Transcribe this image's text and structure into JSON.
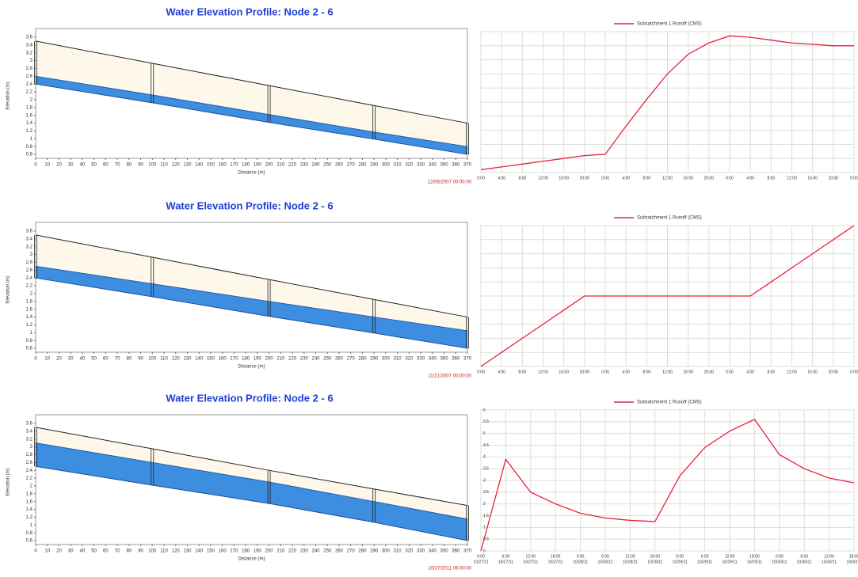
{
  "chart_data": [
    {
      "type": "profile",
      "title": "Water Elevation Profile:  Node 2 - 6",
      "xlabel": "Distance (m)",
      "ylabel": "Elevation (m)",
      "timestamp": "12/06/2007 00:00:00",
      "x": [
        0,
        100,
        200,
        290,
        370
      ],
      "ground": [
        3.5,
        2.93,
        2.36,
        1.85,
        1.4
      ],
      "water": [
        2.6,
        2.12,
        1.62,
        1.17,
        0.8
      ],
      "invert": [
        2.4,
        1.92,
        1.42,
        0.99,
        0.6
      ],
      "xlim": [
        0,
        370
      ],
      "ylim": [
        0.5,
        3.7
      ],
      "xticks": [
        0,
        10,
        20,
        30,
        40,
        50,
        60,
        70,
        80,
        90,
        100,
        110,
        120,
        130,
        140,
        150,
        160,
        170,
        180,
        190,
        200,
        210,
        220,
        230,
        240,
        250,
        260,
        270,
        280,
        290,
        300,
        310,
        320,
        330,
        340,
        350,
        360,
        370
      ],
      "yticks": [
        0.6,
        0.8,
        1,
        1.2,
        1.4,
        1.6,
        1.8,
        2,
        2.2,
        2.4,
        2.6,
        2.8,
        3,
        3.2,
        3.4,
        3.6
      ],
      "water_color": "#3d8de0",
      "ground_fill": "#fdf8ea"
    },
    {
      "type": "profile",
      "title": "Water Elevation Profile:  Node 2 - 6",
      "xlabel": "Distance (m)",
      "ylabel": "Elevation (m)",
      "timestamp": "11/21/2007 00:00:00",
      "x": [
        0,
        100,
        200,
        290,
        370
      ],
      "ground": [
        3.5,
        2.93,
        2.36,
        1.85,
        1.4
      ],
      "water": [
        2.7,
        2.25,
        1.8,
        1.4,
        1.05
      ],
      "invert": [
        2.4,
        1.92,
        1.42,
        0.99,
        0.6
      ],
      "xlim": [
        0,
        370
      ],
      "ylim": [
        0.5,
        3.7
      ],
      "xticks": [
        0,
        10,
        20,
        30,
        40,
        50,
        60,
        70,
        80,
        90,
        100,
        110,
        120,
        130,
        140,
        150,
        160,
        170,
        180,
        190,
        200,
        210,
        220,
        230,
        240,
        250,
        260,
        270,
        280,
        290,
        300,
        310,
        320,
        330,
        340,
        350,
        360,
        370
      ],
      "yticks": [
        0.6,
        0.8,
        1,
        1.2,
        1.4,
        1.6,
        1.8,
        2,
        2.2,
        2.4,
        2.6,
        2.8,
        3,
        3.2,
        3.4,
        3.6
      ],
      "water_color": "#3d8de0",
      "ground_fill": "#fdf8ea"
    },
    {
      "type": "profile",
      "title": "Water Elevation Profile:  Node 2 - 6",
      "xlabel": "Distance (m)",
      "ylabel": "Elevation (m)",
      "timestamp": "10/27/2011 06:00:00",
      "x": [
        0,
        100,
        200,
        290,
        370
      ],
      "ground": [
        3.5,
        2.95,
        2.4,
        1.92,
        1.5
      ],
      "water": [
        3.1,
        2.6,
        2.1,
        1.6,
        1.15
      ],
      "invert": [
        2.5,
        2.02,
        1.55,
        1.07,
        0.6
      ],
      "xlim": [
        0,
        370
      ],
      "ylim": [
        0.5,
        3.7
      ],
      "xticks": [
        0,
        10,
        20,
        30,
        40,
        50,
        60,
        70,
        80,
        90,
        100,
        110,
        120,
        130,
        140,
        150,
        160,
        170,
        180,
        190,
        200,
        210,
        220,
        230,
        240,
        250,
        260,
        270,
        280,
        290,
        300,
        310,
        320,
        330,
        340,
        350,
        360,
        370
      ],
      "yticks": [
        0.6,
        0.8,
        1,
        1.2,
        1.4,
        1.6,
        1.8,
        2,
        2.2,
        2.4,
        2.6,
        2.8,
        3,
        3.2,
        3.4,
        3.6
      ],
      "water_color": "#3d8de0",
      "ground_fill": "#fdf8ea"
    },
    {
      "type": "line",
      "series_name": "Subcatchment 1 Runoff (CMS)",
      "color": "#e8213a",
      "categories": [
        "0:00",
        "4:00",
        "8:00",
        "12:00",
        "16:00",
        "20:00",
        "0:00",
        "4:00",
        "8:00",
        "12:00",
        "16:00",
        "20:00",
        "0:00",
        "4:00",
        "8:00",
        "12:00",
        "16:00",
        "20:00",
        "0:00"
      ],
      "values": [
        0.02,
        0.04,
        0.06,
        0.08,
        0.1,
        0.12,
        0.13,
        0.33,
        0.52,
        0.7,
        0.84,
        0.92,
        0.97,
        0.96,
        0.94,
        0.92,
        0.91,
        0.9,
        0.9
      ],
      "ylim": [
        0,
        1
      ],
      "yticks": [
        0,
        0.1,
        0.2,
        0.3,
        0.4,
        0.5,
        0.6,
        0.7,
        0.8,
        0.9,
        1
      ],
      "show_ytick_labels": false
    },
    {
      "type": "line",
      "series_name": "Subcatchment 1 Runoff (CMS)",
      "color": "#e8213a",
      "categories": [
        "0:00",
        "4:00",
        "8:00",
        "12:00",
        "16:00",
        "20:00",
        "0:00",
        "4:00",
        "8:00",
        "12:00",
        "16:00",
        "20:00",
        "0:00",
        "4:00",
        "8:00",
        "12:00",
        "16:00",
        "20:00",
        "0:00"
      ],
      "values": [
        0,
        0.1,
        0.2,
        0.3,
        0.4,
        0.5,
        0.5,
        0.5,
        0.5,
        0.5,
        0.5,
        0.5,
        0.5,
        0.5,
        0.6,
        0.7,
        0.8,
        0.9,
        1
      ],
      "ylim": [
        0,
        1
      ],
      "yticks": [
        0,
        0.1,
        0.2,
        0.3,
        0.4,
        0.5,
        0.6,
        0.7,
        0.8,
        0.9,
        1
      ],
      "show_ytick_labels": false
    },
    {
      "type": "line",
      "series_name": "Subcatchment 1 Runoff (CMS)",
      "color": "#e8213a",
      "categories": [
        "0:00",
        "6:00",
        "12:00",
        "18:00",
        "0:00",
        "6:00",
        "12:00",
        "18:00",
        "0:00",
        "6:00",
        "12:00",
        "18:00",
        "0:00",
        "6:00",
        "12:00",
        "18:00"
      ],
      "category_dates": [
        "10/27/11",
        "10/27/11",
        "10/27/11",
        "10/27/11",
        "10/28/11",
        "10/28/11",
        "10/28/11",
        "10/28/11",
        "10/29/11",
        "10/29/11",
        "10/29/11",
        "10/29/11",
        "10/30/11",
        "10/30/11",
        "10/30/11",
        "10/30/11"
      ],
      "values": [
        0,
        3.9,
        2.5,
        2,
        1.6,
        1.4,
        1.3,
        1.25,
        3.2,
        4.4,
        5.1,
        5.6,
        4.1,
        3.5,
        3.1,
        2.9
      ],
      "ylim": [
        0,
        6
      ],
      "yticks": [
        0,
        0.5,
        1,
        1.5,
        2,
        2.5,
        3,
        3.5,
        4,
        4.5,
        5,
        5.5,
        6
      ],
      "show_ytick_labels": true
    }
  ]
}
